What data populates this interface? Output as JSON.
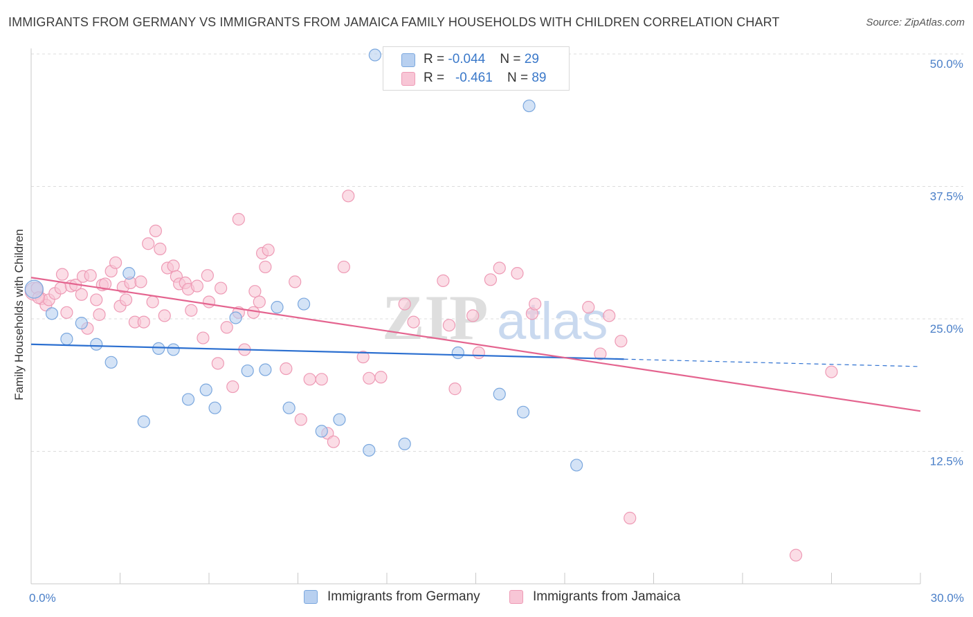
{
  "header": {
    "title": "IMMIGRANTS FROM GERMANY VS IMMIGRANTS FROM JAMAICA FAMILY HOUSEHOLDS WITH CHILDREN CORRELATION CHART",
    "source": "Source: ZipAtlas.com"
  },
  "watermark": {
    "zip": "ZIP",
    "atlas": "atlas"
  },
  "legend": {
    "germany": {
      "r_label": "R = ",
      "r_value": "-0.044",
      "n_label": "N = ",
      "n_value": "29"
    },
    "jamaica": {
      "r_label": "R = ",
      "r_value": "-0.461",
      "n_label": "N = ",
      "n_value": "89"
    }
  },
  "chart_data": {
    "type": "scatter",
    "title": "IMMIGRANTS FROM GERMANY VS IMMIGRANTS FROM JAMAICA FAMILY HOUSEHOLDS WITH CHILDREN CORRELATION CHART",
    "xlabel": "",
    "ylabel": "Family Households with Children",
    "xlim": [
      0,
      30
    ],
    "ylim": [
      0,
      50
    ],
    "x_tick_labels": [
      "0.0%",
      "30.0%"
    ],
    "y_ticks": [
      {
        "value": 12.5,
        "label": "12.5%"
      },
      {
        "value": 25.0,
        "label": "25.0%"
      },
      {
        "value": 37.5,
        "label": "37.5%"
      },
      {
        "value": 50.0,
        "label": "50.0%"
      }
    ],
    "colors": {
      "germany_fill": "#b8d0f0",
      "germany_stroke": "#7aa7de",
      "germany_line": "#2b6fd0",
      "jamaica_fill": "#f8c6d6",
      "jamaica_stroke": "#ee9ab5",
      "jamaica_line": "#e4648f",
      "tick_text": "#4a7fc8",
      "grid": "#dcdcdc"
    },
    "series": [
      {
        "name": "Immigrants from Germany",
        "points": [
          [
            0.1,
            27.8
          ],
          [
            0.7,
            25.5
          ],
          [
            1.2,
            23.1
          ],
          [
            1.7,
            24.6
          ],
          [
            2.2,
            22.6
          ],
          [
            2.7,
            20.9
          ],
          [
            3.3,
            29.3
          ],
          [
            3.8,
            15.3
          ],
          [
            4.3,
            22.2
          ],
          [
            4.8,
            22.1
          ],
          [
            5.3,
            17.4
          ],
          [
            5.9,
            18.3
          ],
          [
            6.2,
            16.6
          ],
          [
            6.9,
            25.1
          ],
          [
            7.3,
            20.1
          ],
          [
            7.9,
            20.2
          ],
          [
            8.3,
            26.1
          ],
          [
            8.7,
            16.6
          ],
          [
            9.2,
            26.4
          ],
          [
            9.8,
            14.4
          ],
          [
            10.4,
            15.5
          ],
          [
            11.4,
            12.6
          ],
          [
            11.6,
            49.9
          ],
          [
            12.6,
            13.2
          ],
          [
            14.4,
            21.8
          ],
          [
            15.8,
            17.9
          ],
          [
            16.6,
            16.2
          ],
          [
            16.8,
            45.1
          ],
          [
            18.4,
            11.2
          ]
        ],
        "trend": {
          "x0": 0,
          "y0": 22.6,
          "x1": 20.0,
          "y1": 21.2,
          "dash_to_x": 30,
          "dash_to_y": 20.5
        }
      },
      {
        "name": "Immigrants from Jamaica",
        "points": [
          [
            0.1,
            27.6
          ],
          [
            0.2,
            27.9
          ],
          [
            0.35,
            26.9
          ],
          [
            0.5,
            26.3
          ],
          [
            0.6,
            26.8
          ],
          [
            0.8,
            27.4
          ],
          [
            1.0,
            27.9
          ],
          [
            1.05,
            29.2
          ],
          [
            1.2,
            25.6
          ],
          [
            1.35,
            28.1
          ],
          [
            1.5,
            28.2
          ],
          [
            1.7,
            27.3
          ],
          [
            1.75,
            29.0
          ],
          [
            1.9,
            24.1
          ],
          [
            2.0,
            29.1
          ],
          [
            2.2,
            26.8
          ],
          [
            2.3,
            25.4
          ],
          [
            2.4,
            28.2
          ],
          [
            2.5,
            28.3
          ],
          [
            2.7,
            29.5
          ],
          [
            2.85,
            30.3
          ],
          [
            3.0,
            26.2
          ],
          [
            3.1,
            28.0
          ],
          [
            3.2,
            26.8
          ],
          [
            3.35,
            28.4
          ],
          [
            3.5,
            24.7
          ],
          [
            3.7,
            28.5
          ],
          [
            3.8,
            24.7
          ],
          [
            3.95,
            32.1
          ],
          [
            4.1,
            26.6
          ],
          [
            4.2,
            33.3
          ],
          [
            4.35,
            31.6
          ],
          [
            4.5,
            25.3
          ],
          [
            4.6,
            29.8
          ],
          [
            4.8,
            30.0
          ],
          [
            4.9,
            29.0
          ],
          [
            5.0,
            28.3
          ],
          [
            5.2,
            28.4
          ],
          [
            5.3,
            27.8
          ],
          [
            5.4,
            25.8
          ],
          [
            5.6,
            28.1
          ],
          [
            5.8,
            23.2
          ],
          [
            5.95,
            29.1
          ],
          [
            6.0,
            26.6
          ],
          [
            6.3,
            20.8
          ],
          [
            6.4,
            27.9
          ],
          [
            6.6,
            24.2
          ],
          [
            6.8,
            18.6
          ],
          [
            7.0,
            25.6
          ],
          [
            7.0,
            34.4
          ],
          [
            7.2,
            22.1
          ],
          [
            7.5,
            25.6
          ],
          [
            7.55,
            27.6
          ],
          [
            7.7,
            26.6
          ],
          [
            7.8,
            31.2
          ],
          [
            7.9,
            29.9
          ],
          [
            8.0,
            31.5
          ],
          [
            8.6,
            20.3
          ],
          [
            8.9,
            28.5
          ],
          [
            9.1,
            15.5
          ],
          [
            9.4,
            19.3
          ],
          [
            9.8,
            19.3
          ],
          [
            10.0,
            14.2
          ],
          [
            10.2,
            13.4
          ],
          [
            10.55,
            29.9
          ],
          [
            10.7,
            36.6
          ],
          [
            11.2,
            21.4
          ],
          [
            11.4,
            19.4
          ],
          [
            11.8,
            19.5
          ],
          [
            12.6,
            26.4
          ],
          [
            12.9,
            24.7
          ],
          [
            13.9,
            28.6
          ],
          [
            14.1,
            24.4
          ],
          [
            14.3,
            18.4
          ],
          [
            14.9,
            25.3
          ],
          [
            15.1,
            21.8
          ],
          [
            15.5,
            28.7
          ],
          [
            15.8,
            29.8
          ],
          [
            16.4,
            29.3
          ],
          [
            16.9,
            25.5
          ],
          [
            17.0,
            26.4
          ],
          [
            18.8,
            26.1
          ],
          [
            19.2,
            21.7
          ],
          [
            19.5,
            25.3
          ],
          [
            19.9,
            22.9
          ],
          [
            20.2,
            6.2
          ],
          [
            25.8,
            2.7
          ],
          [
            27.0,
            20.0
          ],
          [
            0.25,
            27.0
          ]
        ],
        "trend": {
          "x0": 0,
          "y0": 28.9,
          "x1": 30,
          "y1": 16.3
        }
      }
    ]
  },
  "bottom_legend": {
    "germany_label": "Immigrants from Germany",
    "jamaica_label": "Immigrants from Jamaica"
  }
}
